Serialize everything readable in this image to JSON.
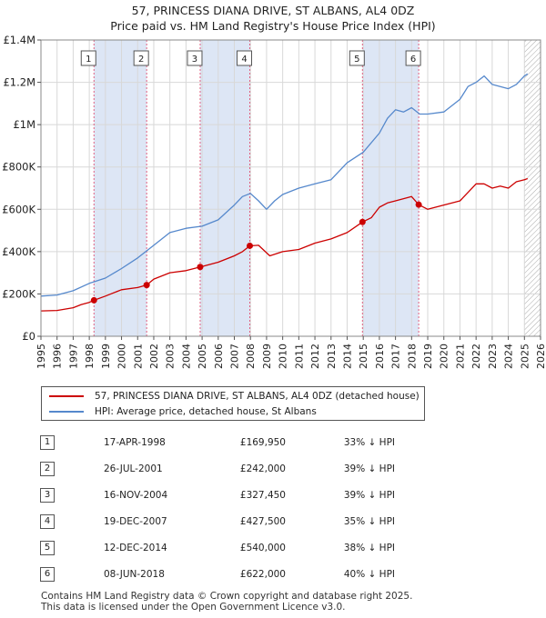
{
  "title_line1": "57, PRINCESS DIANA DRIVE, ST ALBANS, AL4 0DZ",
  "title_line2": "Price paid vs. HM Land Registry's House Price Index (HPI)",
  "chart_data": {
    "type": "line",
    "xlim": [
      1995,
      2026
    ],
    "ylim": [
      0,
      1400000
    ],
    "yticks": [
      0,
      200000,
      400000,
      600000,
      800000,
      1000000,
      1200000,
      1400000
    ],
    "ytick_labels": [
      "£0",
      "£200K",
      "£400K",
      "£600K",
      "£800K",
      "£1M",
      "£1.2M",
      "£1.4M"
    ],
    "xticks": [
      1995,
      1996,
      1997,
      1998,
      1999,
      2000,
      2001,
      2002,
      2003,
      2004,
      2005,
      2006,
      2007,
      2008,
      2009,
      2010,
      2011,
      2012,
      2013,
      2014,
      2015,
      2016,
      2017,
      2018,
      2019,
      2020,
      2021,
      2022,
      2023,
      2024,
      2025,
      2026
    ],
    "grid": true,
    "future_hatch_from": 2025.0,
    "colors": {
      "price": "#cc0000",
      "hpi": "#5588cc",
      "band": "#dde6f5",
      "vline": "#e06080"
    },
    "shaded_bands": [
      [
        1998.29,
        2001.56
      ],
      [
        2004.88,
        2007.96
      ],
      [
        2014.95,
        2018.44
      ]
    ],
    "series": [
      {
        "name": "57, PRINCESS DIANA DRIVE, ST ALBANS, AL4 0DZ (detached house)",
        "color": "#cc0000",
        "x": [
          1995,
          1996,
          1997,
          1997.5,
          1998,
          1998.29,
          1999,
          2000,
          2001,
          2001.56,
          2002,
          2003,
          2004,
          2004.88,
          2005,
          2006,
          2007,
          2007.5,
          2007.96,
          2008.5,
          2009.2,
          2010,
          2011,
          2012,
          2013,
          2014,
          2014.95,
          2015.5,
          2016,
          2016.5,
          2017,
          2017.5,
          2018,
          2018.44,
          2019,
          2020,
          2021,
          2021.5,
          2022,
          2022.5,
          2023,
          2023.5,
          2024,
          2024.5,
          2025,
          2025.2
        ],
        "y": [
          120000,
          122000,
          135000,
          150000,
          160000,
          169950,
          190000,
          220000,
          230000,
          242000,
          270000,
          300000,
          310000,
          327450,
          330000,
          350000,
          380000,
          400000,
          427500,
          430000,
          380000,
          400000,
          410000,
          440000,
          460000,
          490000,
          540000,
          560000,
          610000,
          630000,
          640000,
          650000,
          660000,
          622000,
          600000,
          620000,
          640000,
          680000,
          720000,
          720000,
          700000,
          710000,
          700000,
          730000,
          740000,
          745000
        ]
      },
      {
        "name": "HPI: Average price, detached house, St Albans",
        "color": "#5588cc",
        "x": [
          1995,
          1996,
          1997,
          1998,
          1999,
          2000,
          2001,
          2002,
          2003,
          2004,
          2005,
          2006,
          2007,
          2007.5,
          2008,
          2008.5,
          2009,
          2009.5,
          2010,
          2011,
          2012,
          2013,
          2014,
          2015,
          2016,
          2016.5,
          2017,
          2017.5,
          2018,
          2018.5,
          2019,
          2020,
          2021,
          2021.5,
          2022,
          2022.5,
          2023,
          2023.5,
          2024,
          2024.5,
          2025,
          2025.2
        ],
        "y": [
          190000,
          195000,
          215000,
          250000,
          275000,
          320000,
          370000,
          430000,
          490000,
          510000,
          520000,
          550000,
          620000,
          660000,
          675000,
          640000,
          600000,
          640000,
          670000,
          700000,
          720000,
          740000,
          820000,
          870000,
          960000,
          1030000,
          1070000,
          1060000,
          1080000,
          1050000,
          1050000,
          1060000,
          1120000,
          1180000,
          1200000,
          1230000,
          1190000,
          1180000,
          1170000,
          1190000,
          1230000,
          1240000
        ]
      }
    ],
    "sales": [
      {
        "n": "1",
        "x": 1998.29,
        "y": 169950
      },
      {
        "n": "2",
        "x": 2001.56,
        "y": 242000
      },
      {
        "n": "3",
        "x": 2004.88,
        "y": 327450
      },
      {
        "n": "4",
        "x": 2007.96,
        "y": 427500
      },
      {
        "n": "5",
        "x": 2014.95,
        "y": 540000
      },
      {
        "n": "6",
        "x": 2018.44,
        "y": 622000
      }
    ]
  },
  "legend": {
    "price_label": "57, PRINCESS DIANA DRIVE, ST ALBANS, AL4 0DZ (detached house)",
    "hpi_label": "HPI: Average price, detached house, St Albans"
  },
  "sales_table": [
    {
      "n": "1",
      "date": "17-APR-1998",
      "price": "£169,950",
      "delta": "33% ↓ HPI"
    },
    {
      "n": "2",
      "date": "26-JUL-2001",
      "price": "£242,000",
      "delta": "39% ↓ HPI"
    },
    {
      "n": "3",
      "date": "16-NOV-2004",
      "price": "£327,450",
      "delta": "39% ↓ HPI"
    },
    {
      "n": "4",
      "date": "19-DEC-2007",
      "price": "£427,500",
      "delta": "35% ↓ HPI"
    },
    {
      "n": "5",
      "date": "12-DEC-2014",
      "price": "£540,000",
      "delta": "38% ↓ HPI"
    },
    {
      "n": "6",
      "date": "08-JUN-2018",
      "price": "£622,000",
      "delta": "40% ↓ HPI"
    }
  ],
  "footer_line1": "Contains HM Land Registry data © Crown copyright and database right 2025.",
  "footer_line2": "This data is licensed under the Open Government Licence v3.0."
}
